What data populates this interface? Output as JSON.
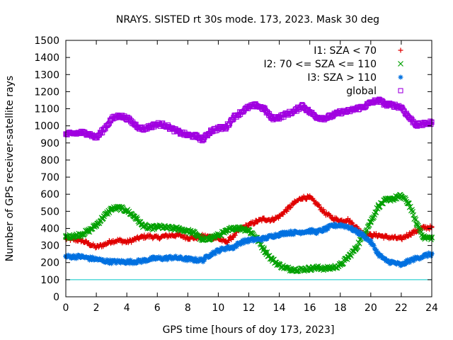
{
  "chart_data": {
    "type": "scatter",
    "title": "NRAYS. SISTED rt 30s mode. 173, 2023. Mask 30 deg",
    "xlabel": "GPS time [hours of doy 173, 2023]",
    "ylabel": "Number of GPS receiver-satellite rays",
    "xlim": [
      0,
      24
    ],
    "ylim": [
      0,
      1500
    ],
    "xticks": [
      "0",
      "2",
      "4",
      "6",
      "8",
      "10",
      "12",
      "14",
      "16",
      "18",
      "20",
      "22",
      "24"
    ],
    "yticks": [
      "0",
      "100",
      "200",
      "300",
      "400",
      "500",
      "600",
      "700",
      "800",
      "900",
      "1000",
      "1100",
      "1200",
      "1300",
      "1400",
      "1500"
    ],
    "legend_position": "top-right",
    "reference_line": {
      "y": 100,
      "color": "#00c8c8"
    },
    "series": [
      {
        "name": "I1: SZA < 70",
        "marker": "+",
        "color": "#e00000",
        "x": [
          0,
          0.5,
          1,
          1.5,
          2,
          2.5,
          3,
          3.5,
          4,
          4.5,
          5,
          5.5,
          6,
          6.5,
          7,
          7.5,
          8,
          8.5,
          9,
          9.5,
          10,
          10.5,
          11,
          11.5,
          12,
          12.5,
          13,
          13.5,
          14,
          14.5,
          15,
          15.5,
          16,
          16.5,
          17,
          17.5,
          18,
          18.5,
          19,
          19.5,
          20,
          20.5,
          21,
          21.5,
          22,
          22.5,
          23,
          23.5,
          24
        ],
        "y": [
          340,
          335,
          330,
          310,
          290,
          305,
          325,
          330,
          320,
          335,
          350,
          355,
          345,
          355,
          360,
          360,
          345,
          345,
          355,
          350,
          340,
          320,
          355,
          400,
          420,
          440,
          455,
          450,
          470,
          510,
          550,
          580,
          580,
          540,
          490,
          460,
          445,
          450,
          410,
          370,
          360,
          360,
          350,
          345,
          340,
          365,
          385,
          405,
          405
        ]
      },
      {
        "name": "I2: 70 <= SZA <= 110",
        "marker": "x",
        "color": "#00a000",
        "x": [
          0,
          0.5,
          1,
          1.5,
          2,
          2.5,
          3,
          3.5,
          4,
          4.5,
          5,
          5.5,
          6,
          6.5,
          7,
          7.5,
          8,
          8.5,
          9,
          9.5,
          10,
          10.5,
          11,
          11.5,
          12,
          12.5,
          13,
          13.5,
          14,
          14.5,
          15,
          15.5,
          16,
          16.5,
          17,
          17.5,
          18,
          18.5,
          19,
          19.5,
          20,
          20.5,
          21,
          21.5,
          22,
          22.5,
          23,
          23.5,
          24
        ],
        "y": [
          350,
          355,
          365,
          385,
          420,
          470,
          515,
          520,
          505,
          470,
          420,
          400,
          410,
          405,
          400,
          395,
          385,
          370,
          330,
          345,
          360,
          380,
          405,
          400,
          390,
          345,
          275,
          220,
          185,
          165,
          160,
          160,
          165,
          170,
          165,
          170,
          185,
          230,
          280,
          360,
          440,
          530,
          565,
          575,
          590,
          545,
          430,
          345,
          345
        ]
      },
      {
        "name": "I3: SZA > 110",
        "marker": "*",
        "color": "#0070e0",
        "x": [
          0,
          0.5,
          1,
          1.5,
          2,
          2.5,
          3,
          3.5,
          4,
          4.5,
          5,
          5.5,
          6,
          6.5,
          7,
          7.5,
          8,
          8.5,
          9,
          9.5,
          10,
          10.5,
          11,
          11.5,
          12,
          12.5,
          13,
          13.5,
          14,
          14.5,
          15,
          15.5,
          16,
          16.5,
          17,
          17.5,
          18,
          18.5,
          19,
          19.5,
          20,
          20.5,
          21,
          21.5,
          22,
          22.5,
          23,
          23.5,
          24
        ],
        "y": [
          235,
          235,
          235,
          225,
          220,
          210,
          205,
          205,
          205,
          205,
          210,
          220,
          225,
          225,
          230,
          225,
          220,
          215,
          215,
          250,
          270,
          285,
          290,
          320,
          330,
          335,
          340,
          355,
          365,
          375,
          375,
          380,
          385,
          380,
          395,
          415,
          420,
          410,
          385,
          360,
          320,
          250,
          210,
          200,
          185,
          210,
          225,
          240,
          250
        ]
      },
      {
        "name": "global",
        "marker": "square",
        "color": "#a000e0",
        "x": [
          0,
          0.5,
          1,
          1.5,
          2,
          2.5,
          3,
          3.5,
          4,
          4.5,
          5,
          5.5,
          6,
          6.5,
          7,
          7.5,
          8,
          8.5,
          9,
          9.5,
          10,
          10.5,
          11,
          11.5,
          12,
          12.5,
          13,
          13.5,
          14,
          14.5,
          15,
          15.5,
          16,
          16.5,
          17,
          17.5,
          18,
          18.5,
          19,
          19.5,
          20,
          20.5,
          21,
          21.5,
          22,
          22.5,
          23,
          23.5,
          24
        ],
        "y": [
          950,
          955,
          960,
          955,
          930,
          980,
          1040,
          1060,
          1045,
          1010,
          980,
          995,
          1010,
          1005,
          980,
          960,
          945,
          940,
          920,
          970,
          985,
          990,
          1050,
          1080,
          1110,
          1120,
          1100,
          1045,
          1050,
          1070,
          1085,
          1120,
          1080,
          1050,
          1045,
          1060,
          1080,
          1085,
          1100,
          1110,
          1135,
          1150,
          1125,
          1120,
          1110,
          1050,
          1005,
          1010,
          1020
        ]
      }
    ]
  }
}
